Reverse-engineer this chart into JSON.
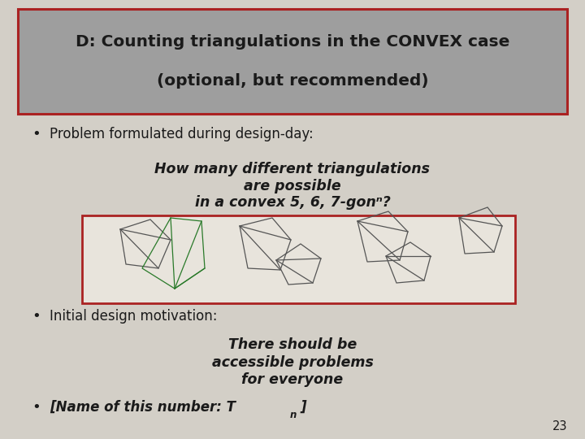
{
  "bg_color": "#d3cfc7",
  "title_text_line1": "D: Counting triangulations in the CONVEX case",
  "title_text_line2": "(optional, but recommended)",
  "title_box_bg": "#9e9e9e",
  "title_box_border": "#aa2222",
  "bullet1": "Problem formulated during design-day:",
  "italic_q1": "How many different triangulations",
  "italic_q2": "are possible",
  "italic_q3": "in a convex 5, 6, 7-gonⁿ?",
  "image_box_border": "#aa2222",
  "image_box_bg": "#e8e4dc",
  "bullet2": "Initial design motivation:",
  "italic_r1": "There should be",
  "italic_r2": "accessible problems",
  "italic_r3": "for everyone",
  "bullet3_main": "[Name of this number: T",
  "bullet3_sub": "n",
  "bullet3_end": "]",
  "page_num": "23",
  "font_color": "#1a1a1a",
  "shape_color": "#555555",
  "green_color": "#2a7a2a"
}
